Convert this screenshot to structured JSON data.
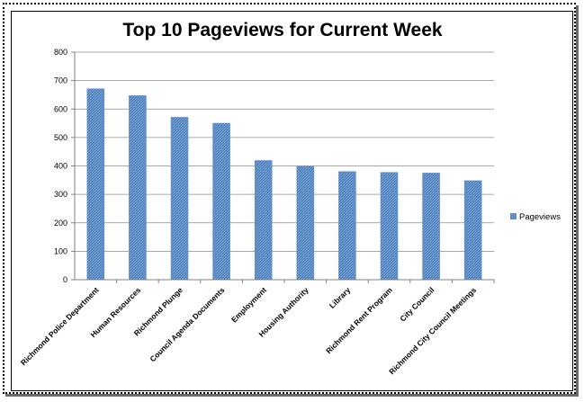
{
  "chart_data": {
    "type": "bar",
    "title": "Top 10 Pageviews for Current Week",
    "categories": [
      "Richmond Police Department",
      "Human Resources",
      "Richmond Plunge",
      "Council Agenda Documents",
      "Employment",
      "Housing Authority",
      "Library",
      "Richmond Rent Program",
      "City Council",
      "Richmond City Council Meetings"
    ],
    "series": [
      {
        "name": "Pageviews",
        "values": [
          672,
          648,
          572,
          551,
          420,
          400,
          381,
          378,
          376,
          349
        ],
        "color": "#4f81bd"
      }
    ],
    "xlabel": "",
    "ylabel": "",
    "ylim": [
      0,
      800
    ],
    "yticks": [
      0,
      100,
      200,
      300,
      400,
      500,
      600,
      700,
      800
    ],
    "grid": true,
    "legend_position": "right"
  }
}
